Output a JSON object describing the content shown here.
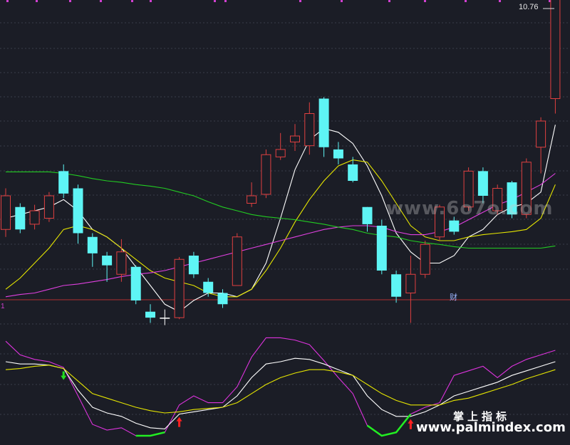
{
  "chart_data": [
    {
      "type": "candlestick",
      "price_label": "10.76",
      "badge": "财",
      "candles": [
        {
          "o": 7.5,
          "c": 7.05,
          "h": 7.6,
          "l": 6.95,
          "dir": "up"
        },
        {
          "o": 7.05,
          "c": 7.35,
          "h": 7.4,
          "l": 7.0,
          "dir": "down"
        },
        {
          "o": 7.12,
          "c": 7.3,
          "h": 7.38,
          "l": 7.05,
          "dir": "up"
        },
        {
          "o": 7.2,
          "c": 7.5,
          "h": 7.55,
          "l": 7.15,
          "dir": "up"
        },
        {
          "o": 7.83,
          "c": 7.53,
          "h": 7.92,
          "l": 7.47,
          "dir": "down"
        },
        {
          "o": 7.6,
          "c": 7.0,
          "h": 7.65,
          "l": 6.86,
          "dir": "down"
        },
        {
          "o": 6.95,
          "c": 6.73,
          "h": 7.0,
          "l": 6.55,
          "dir": "down"
        },
        {
          "o": 6.7,
          "c": 6.57,
          "h": 6.75,
          "l": 6.35,
          "dir": "down"
        },
        {
          "o": 6.45,
          "c": 6.75,
          "h": 6.92,
          "l": 6.35,
          "dir": "up"
        },
        {
          "o": 6.55,
          "c": 6.1,
          "h": 6.57,
          "l": 6.05,
          "dir": "down"
        },
        {
          "o": 5.95,
          "c": 5.87,
          "h": 6.05,
          "l": 5.8,
          "dir": "down"
        },
        {
          "o": 5.87,
          "c": 5.87,
          "h": 5.98,
          "l": 5.77,
          "dir": "doji"
        },
        {
          "o": 5.87,
          "c": 6.65,
          "h": 6.68,
          "l": 5.85,
          "dir": "up"
        },
        {
          "o": 6.7,
          "c": 6.45,
          "h": 6.75,
          "l": 6.4,
          "dir": "down"
        },
        {
          "o": 6.35,
          "c": 6.2,
          "h": 6.4,
          "l": 6.15,
          "dir": "down"
        },
        {
          "o": 6.2,
          "c": 6.05,
          "h": 6.25,
          "l": 6.0,
          "dir": "down"
        },
        {
          "o": 6.3,
          "c": 6.95,
          "h": 7.0,
          "l": 6.3,
          "dir": "up"
        },
        {
          "o": 7.4,
          "c": 7.5,
          "h": 7.68,
          "l": 7.35,
          "dir": "up"
        },
        {
          "o": 7.52,
          "c": 8.05,
          "h": 8.12,
          "l": 7.47,
          "dir": "up"
        },
        {
          "o": 8.02,
          "c": 8.12,
          "h": 8.34,
          "l": 7.98,
          "dir": "up"
        },
        {
          "o": 8.22,
          "c": 8.3,
          "h": 8.46,
          "l": 8.1,
          "dir": "up"
        },
        {
          "o": 8.17,
          "c": 8.6,
          "h": 8.75,
          "l": 8.05,
          "dir": "up"
        },
        {
          "o": 8.8,
          "c": 8.15,
          "h": 8.82,
          "l": 8.02,
          "dir": "down"
        },
        {
          "o": 8.12,
          "c": 8.0,
          "h": 8.22,
          "l": 7.92,
          "dir": "down"
        },
        {
          "o": 7.92,
          "c": 7.7,
          "h": 8.02,
          "l": 7.68,
          "dir": "down"
        },
        {
          "o": 7.35,
          "c": 7.12,
          "h": 7.35,
          "l": 7.02,
          "dir": "down"
        },
        {
          "o": 7.1,
          "c": 6.5,
          "h": 7.18,
          "l": 6.45,
          "dir": "down"
        },
        {
          "o": 6.45,
          "c": 6.15,
          "h": 6.5,
          "l": 6.07,
          "dir": "down"
        },
        {
          "o": 6.2,
          "c": 6.45,
          "h": 6.7,
          "l": 5.8,
          "dir": "up"
        },
        {
          "o": 6.45,
          "c": 6.85,
          "h": 6.9,
          "l": 6.4,
          "dir": "up"
        },
        {
          "o": 6.95,
          "c": 7.35,
          "h": 7.38,
          "l": 6.9,
          "dir": "up"
        },
        {
          "o": 7.17,
          "c": 7.02,
          "h": 7.22,
          "l": 6.98,
          "dir": "down"
        },
        {
          "o": 7.35,
          "c": 7.83,
          "h": 7.88,
          "l": 7.3,
          "dir": "up"
        },
        {
          "o": 7.83,
          "c": 7.5,
          "h": 7.88,
          "l": 7.4,
          "dir": "down"
        },
        {
          "o": 7.3,
          "c": 7.6,
          "h": 7.65,
          "l": 7.25,
          "dir": "up"
        },
        {
          "o": 7.68,
          "c": 7.25,
          "h": 7.7,
          "l": 7.2,
          "dir": "down"
        },
        {
          "o": 7.25,
          "c": 7.95,
          "h": 8.0,
          "l": 7.2,
          "dir": "up"
        },
        {
          "o": 8.15,
          "c": 8.5,
          "h": 8.55,
          "l": 7.8,
          "dir": "up"
        },
        {
          "o": 8.8,
          "c": 10.76,
          "h": 10.76,
          "l": 8.6,
          "dir": "up"
        }
      ],
      "lines": [
        {
          "color": "#ffffff",
          "values": [
            7.2,
            7.25,
            7.3,
            7.35,
            7.45,
            7.3,
            7.05,
            6.95,
            6.8,
            6.55,
            6.3,
            6.05,
            5.95,
            6.1,
            6.2,
            6.2,
            6.15,
            6.25,
            6.6,
            7.2,
            7.85,
            8.25,
            8.4,
            8.35,
            8.2,
            7.9,
            7.5,
            7.0,
            6.75,
            6.6,
            6.6,
            6.7,
            6.95,
            7.05,
            7.25,
            7.35,
            7.4,
            7.55,
            8.45
          ]
        },
        {
          "color": "#e6e600",
          "values": [
            6.25,
            6.4,
            6.6,
            6.8,
            7.05,
            7.1,
            7.05,
            6.95,
            6.8,
            6.65,
            6.5,
            6.4,
            6.35,
            6.3,
            6.2,
            6.15,
            6.15,
            6.25,
            6.5,
            6.8,
            7.15,
            7.45,
            7.7,
            7.9,
            7.98,
            7.95,
            7.7,
            7.4,
            7.1,
            6.95,
            6.9,
            6.9,
            6.95,
            6.98,
            7.0,
            7.02,
            7.05,
            7.2,
            7.65
          ]
        },
        {
          "color": "#e040e0",
          "values": [
            6.15,
            6.18,
            6.2,
            6.25,
            6.3,
            6.32,
            6.35,
            6.38,
            6.42,
            6.45,
            6.47,
            6.5,
            6.55,
            6.6,
            6.65,
            6.7,
            6.75,
            6.8,
            6.85,
            6.9,
            6.95,
            7.0,
            7.05,
            7.08,
            7.1,
            7.1,
            7.08,
            7.02,
            6.98,
            6.98,
            7.02,
            7.08,
            7.18,
            7.28,
            7.38,
            7.45,
            7.55,
            7.65,
            7.8
          ]
        },
        {
          "color": "#22cc22",
          "values": [
            7.82,
            7.82,
            7.82,
            7.82,
            7.8,
            7.77,
            7.73,
            7.7,
            7.68,
            7.65,
            7.63,
            7.6,
            7.55,
            7.5,
            7.42,
            7.35,
            7.3,
            7.25,
            7.22,
            7.2,
            7.18,
            7.15,
            7.12,
            7.08,
            7.05,
            7.0,
            6.97,
            6.95,
            6.9,
            6.87,
            6.85,
            6.82,
            6.8,
            6.8,
            6.8,
            6.8,
            6.8,
            6.8,
            6.83
          ]
        }
      ]
    },
    {
      "type": "line",
      "label": "1",
      "ylim": [
        0,
        100
      ],
      "series": [
        {
          "color": "#dd33dd",
          "values": [
            88,
            76,
            72,
            70,
            65,
            40,
            15,
            10,
            12,
            5,
            5,
            8,
            32,
            40,
            34,
            34,
            48,
            74,
            91,
            91,
            89,
            85,
            71,
            56,
            42,
            14,
            5,
            8,
            24,
            30,
            34,
            58,
            62,
            66,
            56,
            66,
            72,
            76,
            80
          ]
        },
        {
          "color": "#ffffff",
          "values": [
            70,
            68,
            68,
            67,
            64,
            45,
            30,
            25,
            22,
            16,
            12,
            11,
            24,
            26,
            28,
            30,
            40,
            56,
            68,
            70,
            73,
            72,
            68,
            63,
            58,
            40,
            28,
            22,
            22,
            26,
            32,
            40,
            44,
            48,
            52,
            58,
            62,
            66,
            70
          ]
        },
        {
          "color": "#e6e600",
          "values": [
            63,
            64,
            66,
            67,
            64,
            53,
            42,
            38,
            34,
            30,
            27,
            25,
            26,
            28,
            29,
            30,
            34,
            42,
            50,
            56,
            60,
            63,
            63,
            61,
            58,
            50,
            42,
            36,
            32,
            32,
            32,
            36,
            38,
            42,
            46,
            50,
            55,
            59,
            63
          ]
        }
      ],
      "signal_up_at": [
        12,
        28
      ],
      "signal_down_at": [
        4
      ]
    }
  ],
  "watermarks": {
    "top": "www.6o7o.com",
    "bottom_cn": "掌上指标",
    "bottom_url": "www.palmindex.com"
  }
}
